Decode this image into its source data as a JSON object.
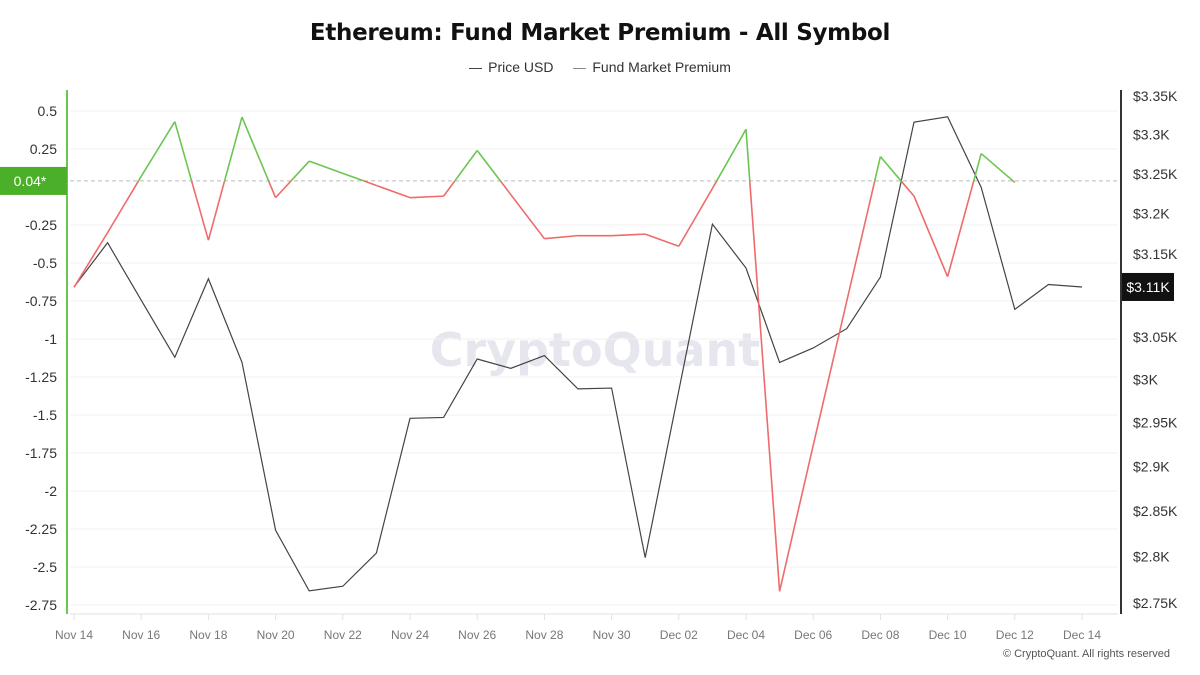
{
  "chart_data": {
    "type": "line",
    "title": "Ethereum: Fund Market Premium - All Symbol",
    "legend": [
      "Price USD",
      "Fund Market Premium"
    ],
    "legend_placement": "top",
    "x": [
      "Nov 14",
      "Nov 15",
      "Nov 16",
      "Nov 17",
      "Nov 18",
      "Nov 19",
      "Nov 20",
      "Nov 21",
      "Nov 22",
      "Nov 23",
      "Nov 24",
      "Nov 25",
      "Nov 26",
      "Nov 27",
      "Nov 28",
      "Nov 29",
      "Nov 30",
      "Dec 01",
      "Dec 02",
      "Dec 03",
      "Dec 04",
      "Dec 05",
      "Dec 06",
      "Dec 07",
      "Dec 08",
      "Dec 09",
      "Dec 10",
      "Dec 11",
      "Dec 12",
      "Dec 13",
      "Dec 14"
    ],
    "x_tick_labels": [
      "Nov 14",
      "Nov 16",
      "Nov 18",
      "Nov 20",
      "Nov 22",
      "Nov 24",
      "Nov 26",
      "Nov 28",
      "Nov 30",
      "Dec 02",
      "Dec 04",
      "Dec 06",
      "Dec 08",
      "Dec 10",
      "Dec 12",
      "Dec 14"
    ],
    "series": [
      {
        "name": "Price USD",
        "axis": "right",
        "unit": "USD thousands",
        "color": "#444444",
        "values": [
          3.11,
          3.164,
          3.094,
          3.026,
          3.12,
          3.02,
          2.829,
          2.763,
          2.768,
          2.804,
          2.955,
          2.956,
          3.024,
          3.013,
          3.028,
          2.989,
          2.99,
          2.799,
          2.987,
          3.187,
          3.133,
          3.02,
          3.037,
          3.06,
          3.122,
          3.316,
          3.323,
          3.233,
          3.083,
          3.113,
          3.11
        ]
      },
      {
        "name": "Fund Market Premium",
        "axis": "left",
        "color_above": "#6cc551",
        "color_below": "#ef6b6b",
        "threshold": 0.04,
        "values": [
          -0.66,
          -0.3,
          0.07,
          0.43,
          -0.35,
          0.46,
          -0.07,
          0.17,
          0.09,
          0.01,
          -0.07,
          -0.06,
          0.24,
          -0.05,
          -0.34,
          -0.32,
          -0.32,
          -0.31,
          -0.39,
          -0.01,
          0.38,
          -2.66,
          -1.7,
          -0.75,
          0.2,
          -0.06,
          -0.59,
          0.22,
          0.03,
          null,
          null
        ]
      }
    ],
    "left_axis": {
      "ylim": [
        -2.75,
        0.5
      ],
      "ticks": [
        "0.5",
        "0.25",
        "-0.25",
        "-0.5",
        "-0.75",
        "-1",
        "-1.25",
        "-1.5",
        "-1.75",
        "-2",
        "-2.25",
        "-2.5",
        "-2.75"
      ],
      "tick_values": [
        0.5,
        0.25,
        -0.25,
        -0.5,
        -0.75,
        -1,
        -1.25,
        -1.5,
        -1.75,
        -2,
        -2.25,
        -2.5,
        -2.75
      ],
      "color": "#6cc551"
    },
    "right_axis": {
      "ylim": [
        2.75,
        3.35
      ],
      "scale": "log",
      "ticks": [
        "$3.35K",
        "$3.3K",
        "$3.25K",
        "$3.2K",
        "$3.15K",
        "$3.05K",
        "$3K",
        "$2.95K",
        "$2.9K",
        "$2.85K",
        "$2.8K",
        "$2.75K"
      ],
      "tick_values": [
        3.35,
        3.3,
        3.25,
        3.2,
        3.15,
        3.05,
        3.0,
        2.95,
        2.9,
        2.85,
        2.8,
        2.75
      ]
    },
    "left_marker": {
      "label": "0.04*",
      "value": 0.04,
      "color": "#4caf2a"
    },
    "right_marker": {
      "label": "$3.11K",
      "value": 3.11,
      "color": "#111111"
    },
    "grid": true,
    "watermark": "CryptoQuant"
  },
  "footer": "© CryptoQuant. All rights reserved"
}
